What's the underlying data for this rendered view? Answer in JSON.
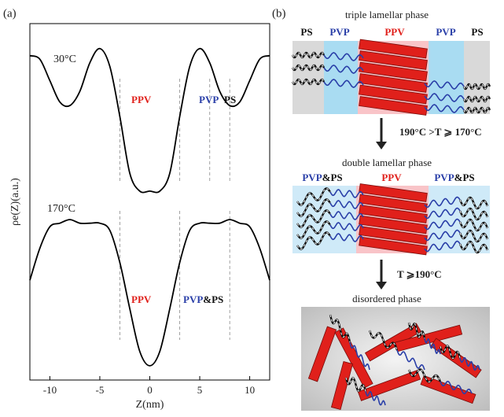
{
  "chart_data": {
    "type": "line",
    "panel_label": "(a)",
    "x_label": "Z(nm)",
    "y_label": "ρe(Z)(a.u.)",
    "x": [
      -12,
      -11,
      -10,
      -9,
      -8,
      -7,
      -6,
      -5,
      -4,
      -3,
      -2,
      -1,
      0,
      1,
      2,
      3,
      4,
      5,
      6,
      7,
      8,
      9,
      10,
      11,
      12
    ],
    "series": [
      {
        "name": "30°C",
        "color": "#000000",
        "values": [
          91,
          90,
          84,
          78,
          77,
          81,
          89,
          93,
          88,
          74,
          58,
          53,
          53,
          53,
          58,
          74,
          88,
          93,
          89,
          81,
          77,
          78,
          84,
          90,
          91
        ]
      },
      {
        "name": "170°C",
        "color": "#000000",
        "values": [
          28,
          37,
          43,
          44,
          45,
          44,
          44,
          44,
          42,
          33,
          20,
          8,
          4,
          8,
          20,
          33,
          42,
          44,
          44,
          44,
          45,
          44,
          43,
          37,
          28
        ]
      }
    ],
    "xlim": [
      -12,
      12
    ],
    "ylim": [
      0,
      100
    ],
    "xticks": [
      -10,
      -5,
      0,
      5,
      10
    ],
    "guides": [
      [
        -3,
        3,
        6,
        8
      ],
      [
        -3,
        3,
        8
      ]
    ],
    "region_labels": [
      [
        [
          "PPV"
        ],
        [
          "PVP"
        ],
        [
          "PS"
        ]
      ],
      [
        [
          "PPV"
        ],
        [
          "PVP",
          "&PS"
        ]
      ]
    ]
  },
  "diagram": {
    "panel_label": "(b)",
    "stages": [
      {
        "title": "triple lamellar phase",
        "labels": [
          [
            "PS"
          ],
          [
            "PVP"
          ],
          [
            "PPV"
          ],
          [
            "PVP"
          ],
          [
            "PS"
          ]
        ]
      },
      {
        "title": "double lamellar phase",
        "labels": [
          [
            "PVP",
            "&PS"
          ],
          [
            "PPV"
          ],
          [
            "PVP",
            "&PS"
          ]
        ]
      },
      {
        "title": "disordered phase",
        "labels": []
      }
    ],
    "transitions": [
      "190°C >T ⩾ 170°C",
      "T ⩾190°C"
    ]
  }
}
